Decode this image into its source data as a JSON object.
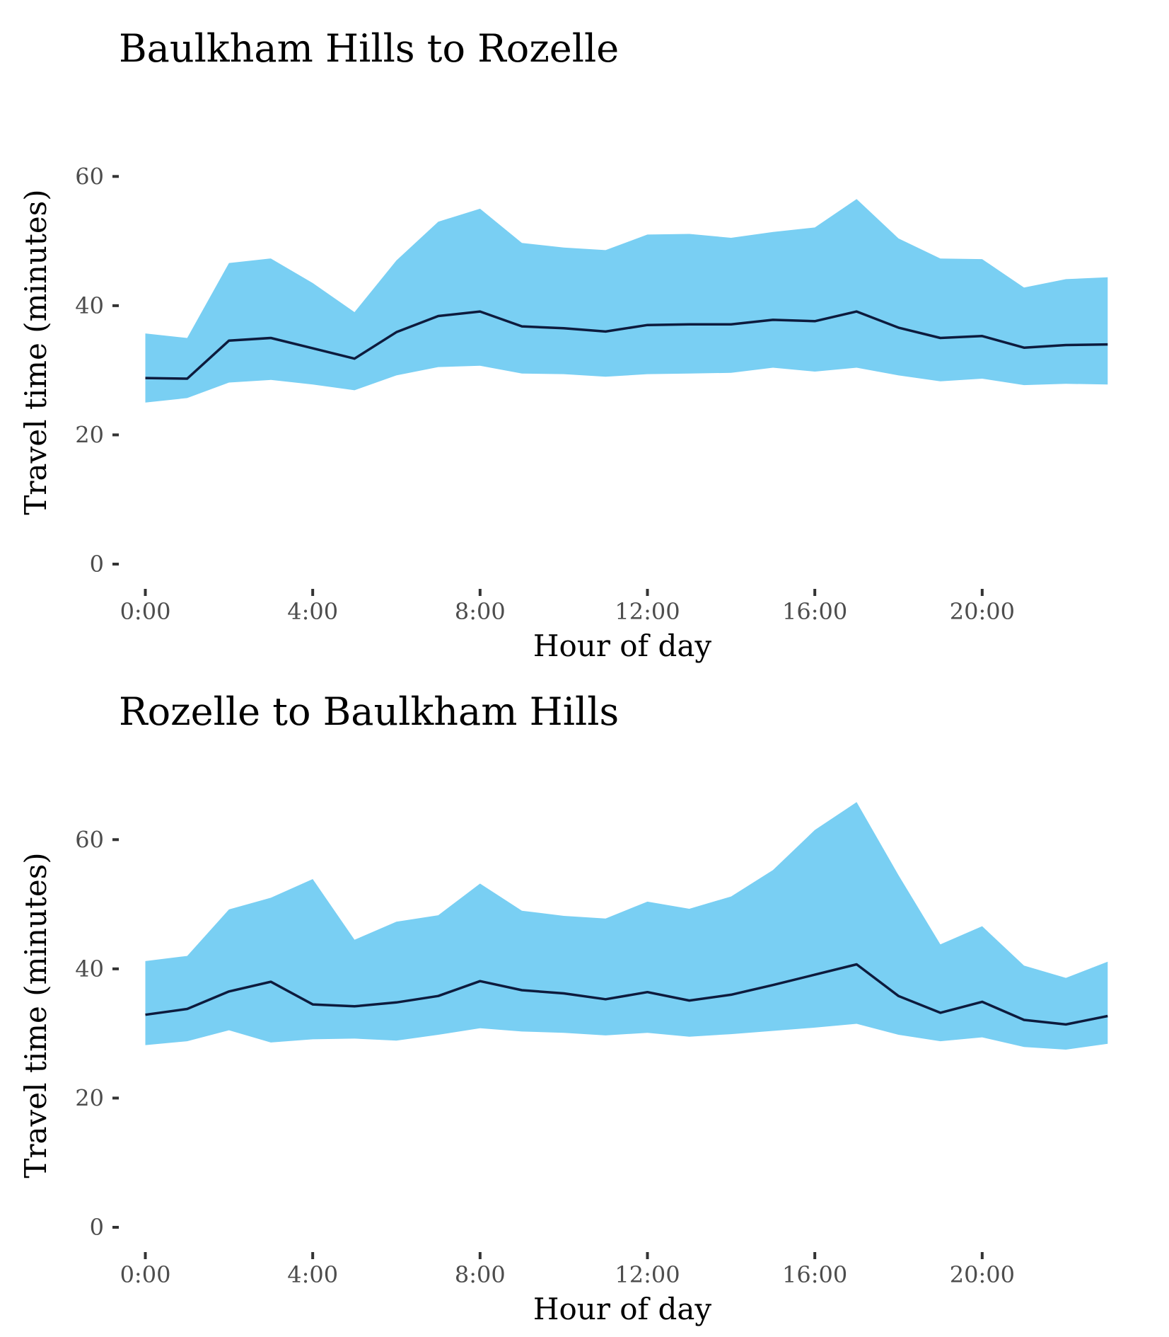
{
  "chart_data": [
    {
      "type": "area",
      "title": "Baulkham Hills to Rozelle",
      "xlabel": "Hour of day",
      "ylabel": "Travel time (minutes)",
      "x": [
        0,
        1,
        2,
        3,
        4,
        5,
        6,
        7,
        8,
        9,
        10,
        11,
        12,
        13,
        14,
        15,
        16,
        17,
        18,
        19,
        20,
        21,
        22,
        23
      ],
      "xticks": [
        {
          "value": 0,
          "label": "0:00"
        },
        {
          "value": 4,
          "label": "4:00"
        },
        {
          "value": 8,
          "label": "8:00"
        },
        {
          "value": 12,
          "label": "12:00"
        },
        {
          "value": 16,
          "label": "16:00"
        },
        {
          "value": 20,
          "label": "20:00"
        }
      ],
      "yticks": [
        {
          "value": 0,
          "label": "0"
        },
        {
          "value": 20,
          "label": "20"
        },
        {
          "value": 40,
          "label": "40"
        },
        {
          "value": 60,
          "label": "60"
        }
      ],
      "xlim": [
        -0.6,
        23.4
      ],
      "ylim": [
        0,
        70
      ],
      "grid": false,
      "band_color": "#79cff3",
      "line_color": "#0d1b3d",
      "series": [
        {
          "role": "band-upper",
          "values": [
            35.7,
            35.0,
            46.6,
            47.3,
            43.5,
            39.0,
            47.0,
            53.0,
            55.0,
            49.7,
            49.0,
            48.6,
            51.0,
            51.1,
            50.5,
            51.4,
            52.1,
            56.5,
            50.4,
            47.3,
            47.2,
            42.8,
            44.1,
            44.4
          ]
        },
        {
          "role": "median",
          "values": [
            28.8,
            28.7,
            34.6,
            35.0,
            33.4,
            31.8,
            35.9,
            38.4,
            39.1,
            36.8,
            36.5,
            36.0,
            37.0,
            37.1,
            37.1,
            37.8,
            37.6,
            39.1,
            36.6,
            35.0,
            35.3,
            33.5,
            33.9,
            34.0
          ]
        },
        {
          "role": "band-lower",
          "values": [
            25.0,
            25.7,
            28.1,
            28.5,
            27.8,
            26.9,
            29.2,
            30.5,
            30.7,
            29.5,
            29.4,
            29.0,
            29.4,
            29.5,
            29.6,
            30.4,
            29.8,
            30.4,
            29.2,
            28.3,
            28.7,
            27.7,
            27.9,
            27.8
          ]
        }
      ]
    },
    {
      "type": "area",
      "title": "Rozelle to Baulkham Hills",
      "xlabel": "Hour of day",
      "ylabel": "Travel time (minutes)",
      "x": [
        0,
        1,
        2,
        3,
        4,
        5,
        6,
        7,
        8,
        9,
        10,
        11,
        12,
        13,
        14,
        15,
        16,
        17,
        18,
        19,
        20,
        21,
        22,
        23
      ],
      "xticks": [
        {
          "value": 0,
          "label": "0:00"
        },
        {
          "value": 4,
          "label": "4:00"
        },
        {
          "value": 8,
          "label": "8:00"
        },
        {
          "value": 12,
          "label": "12:00"
        },
        {
          "value": 16,
          "label": "16:00"
        },
        {
          "value": 20,
          "label": "20:00"
        }
      ],
      "yticks": [
        {
          "value": 0,
          "label": "0"
        },
        {
          "value": 20,
          "label": "20"
        },
        {
          "value": 40,
          "label": "40"
        },
        {
          "value": 60,
          "label": "60"
        }
      ],
      "xlim": [
        -0.6,
        23.4
      ],
      "ylim": [
        0,
        70
      ],
      "grid": false,
      "band_color": "#79cff3",
      "line_color": "#0d1b3d",
      "series": [
        {
          "role": "band-upper",
          "values": [
            41.2,
            42.0,
            49.2,
            51.0,
            53.9,
            44.5,
            47.3,
            48.3,
            53.2,
            49.0,
            48.2,
            47.8,
            50.4,
            49.3,
            51.2,
            55.3,
            61.5,
            65.8,
            54.5,
            43.8,
            46.6,
            40.5,
            38.6,
            41.1
          ]
        },
        {
          "role": "median",
          "values": [
            32.9,
            33.8,
            36.5,
            38.0,
            34.5,
            34.2,
            34.8,
            35.8,
            38.1,
            36.7,
            36.2,
            35.3,
            36.4,
            35.1,
            36.0,
            37.5,
            39.1,
            40.7,
            35.8,
            33.2,
            34.9,
            32.1,
            31.4,
            32.7
          ]
        },
        {
          "role": "band-lower",
          "values": [
            28.2,
            28.8,
            30.5,
            28.6,
            29.1,
            29.2,
            28.9,
            29.8,
            30.8,
            30.3,
            30.1,
            29.7,
            30.1,
            29.5,
            29.9,
            30.4,
            30.9,
            31.5,
            29.8,
            28.8,
            29.4,
            27.9,
            27.5,
            28.4
          ]
        }
      ]
    }
  ]
}
